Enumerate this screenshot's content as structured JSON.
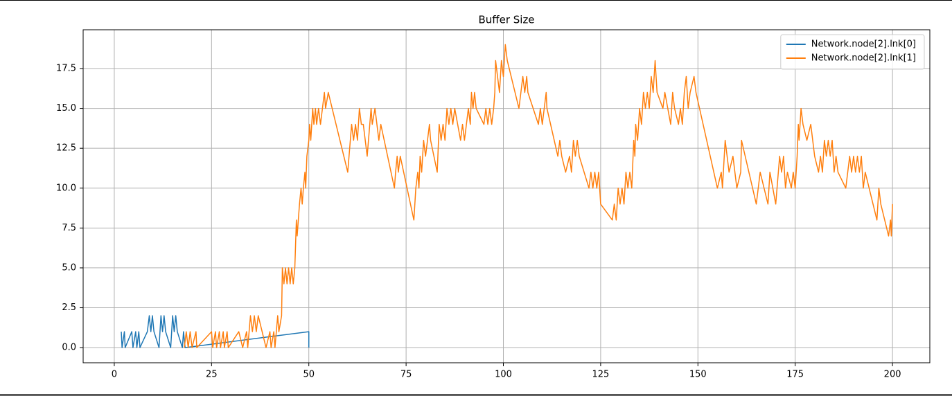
{
  "chart_data": {
    "type": "line",
    "title": "Buffer Size",
    "series": [
      {
        "name": "Network.node[2].lnk[0]",
        "color": "#1f77b4",
        "x": [
          1.8,
          2.0,
          2.6,
          2.8,
          4.5,
          4.8,
          5.5,
          5.8,
          6.3,
          6.6,
          8.5,
          9.0,
          9.4,
          9.8,
          10.2,
          11.5,
          12.0,
          12.4,
          12.8,
          13.2,
          14.5,
          15.0,
          15.4,
          15.8,
          16.2,
          17.5,
          17.8,
          18.2,
          50,
          50
        ],
        "values": [
          1,
          0,
          1,
          0,
          1,
          0,
          1,
          0,
          1,
          0,
          1,
          2,
          1,
          2,
          1,
          0,
          2,
          1,
          2,
          1,
          0,
          2,
          1,
          2,
          1,
          0,
          1,
          0,
          1,
          0
        ]
      },
      {
        "name": "Network.node[2].lnk[1]",
        "color": "#ff7f0e",
        "x": [
          18.0,
          18.5,
          19.0,
          19.5,
          20.0,
          21.0,
          21.2,
          25,
          25.3,
          26,
          26.3,
          27,
          27.3,
          28,
          28.3,
          29,
          29.3,
          32,
          33,
          34,
          34.3,
          35,
          35.5,
          36,
          36.5,
          37,
          38,
          39,
          40,
          40.3,
          41,
          41.3,
          42,
          42.3,
          43,
          43.2,
          43.6,
          44,
          44.4,
          44.8,
          45.2,
          45.6,
          46,
          46.4,
          46.8,
          47,
          47.3,
          47.6,
          48,
          48.3,
          48.6,
          49,
          49.2,
          49.5,
          50,
          50.2,
          50.5,
          51,
          51.3,
          51.7,
          52,
          52.5,
          53,
          53.5,
          54,
          54.3,
          55,
          58,
          60,
          61,
          61.5,
          62,
          62.5,
          63,
          63.5,
          64,
          65,
          66,
          66.3,
          67,
          67.5,
          68,
          68.5,
          72,
          72.3,
          72.7,
          73,
          73.5,
          77,
          77.5,
          78,
          78.3,
          78.6,
          79,
          79.5,
          80,
          81,
          81.3,
          83,
          83.5,
          84,
          84.5,
          85,
          85.5,
          86,
          86.5,
          87,
          87.5,
          89,
          89.5,
          90,
          90.5,
          91,
          91.5,
          91.8,
          92.2,
          92.6,
          93,
          95,
          95.5,
          96,
          96.5,
          97,
          97.5,
          97.8,
          98,
          98.5,
          99,
          99.5,
          100,
          100.5,
          101,
          104,
          104.5,
          105,
          105.5,
          106,
          106.3,
          109,
          109.5,
          110,
          111,
          111.2,
          114,
          114.5,
          115,
          116,
          117,
          117.5,
          118,
          118.5,
          119,
          119.5,
          122,
          122.5,
          123,
          123.5,
          124,
          124.5,
          125,
          128,
          128.5,
          129,
          129.5,
          130,
          130.5,
          131,
          131.5,
          132,
          132.5,
          133,
          133.5,
          133.8,
          134,
          134.5,
          135,
          135.5,
          136,
          136.5,
          137,
          137.5,
          138,
          138.5,
          139,
          139.5,
          141,
          141.5,
          143,
          143.5,
          144,
          145,
          145.5,
          146,
          146.5,
          147,
          147.5,
          148,
          149,
          149.5,
          155,
          156,
          156.3,
          157,
          157.5,
          158,
          159,
          160,
          161,
          161.2,
          165,
          166,
          168,
          168.5,
          170,
          171,
          171.5,
          172,
          172.5,
          173,
          174,
          174.5,
          175,
          175.5,
          175.8,
          176,
          176.5,
          177,
          178,
          179,
          180,
          181,
          181.5,
          182,
          182.5,
          183,
          183.5,
          184,
          184.5,
          185,
          185.5,
          186,
          188,
          189,
          189.5,
          190,
          190.5,
          191,
          191.5,
          192,
          192.5,
          193,
          195,
          196,
          196.5,
          197,
          199,
          199.5,
          199.7,
          200
        ],
        "values": [
          0,
          1,
          0,
          1,
          0,
          1,
          0,
          1,
          0,
          1,
          0,
          1,
          0,
          1,
          0,
          1,
          0,
          1,
          0,
          1,
          0,
          2,
          1,
          2,
          1,
          2,
          1,
          0,
          1,
          0,
          1,
          0,
          2,
          1,
          2,
          5,
          4,
          5,
          4,
          5,
          4,
          5,
          4,
          5,
          8,
          7,
          8,
          9,
          10,
          9,
          10,
          11,
          10,
          12,
          13,
          14,
          13,
          15,
          14,
          15,
          14,
          15,
          14,
          15,
          16,
          15,
          16,
          13,
          11,
          14,
          13,
          14,
          13,
          15,
          14,
          14,
          12,
          15,
          14,
          15,
          14,
          13,
          14,
          10,
          11,
          12,
          11,
          12,
          8,
          10,
          11,
          10,
          12,
          11,
          13,
          12,
          14,
          13,
          11,
          14,
          13,
          14,
          13,
          15,
          14,
          15,
          14,
          15,
          13,
          14,
          13,
          14,
          15,
          14,
          16,
          15,
          16,
          15,
          14,
          15,
          14,
          15,
          14,
          15,
          16,
          18,
          17,
          16,
          18,
          17,
          19,
          18,
          15,
          16,
          17,
          16,
          17,
          16,
          14,
          15,
          14,
          16,
          15,
          12,
          13,
          12,
          11,
          12,
          11,
          13,
          12,
          13,
          12,
          10,
          11,
          10,
          11,
          10,
          11,
          9,
          8,
          9,
          8,
          10,
          9,
          10,
          9,
          11,
          10,
          11,
          10,
          13,
          12,
          14,
          13,
          15,
          14,
          16,
          15,
          16,
          15,
          17,
          16,
          18,
          16,
          15,
          16,
          14,
          16,
          15,
          14,
          15,
          14,
          16,
          17,
          15,
          16,
          17,
          16,
          10,
          11,
          10,
          13,
          12,
          11,
          12,
          10,
          11,
          13,
          9,
          11,
          9,
          11,
          9,
          12,
          11,
          12,
          10,
          11,
          10,
          11,
          10,
          12,
          14,
          13,
          15,
          14,
          13,
          14,
          12,
          11,
          12,
          11,
          13,
          12,
          13,
          12,
          13,
          11,
          12,
          11,
          10,
          12,
          11,
          12,
          11,
          12,
          11,
          12,
          10,
          11,
          9,
          8,
          10,
          9,
          7,
          8,
          7,
          9
        ]
      }
    ],
    "xlim": [
      -8,
      209.6
    ],
    "ylim": [
      -0.95,
      19.93
    ],
    "xticks": [
      0,
      25,
      50,
      75,
      100,
      125,
      150,
      175,
      200
    ],
    "yticks": [
      {
        "value": 0,
        "label": "0.0"
      },
      2.5,
      {
        "value": 5,
        "label": "5.0"
      },
      7.5,
      {
        "value": 10,
        "label": "10.0"
      },
      12.5,
      {
        "value": 15,
        "label": "15.0"
      },
      17.5
    ],
    "grid": true,
    "legend": "upper right"
  }
}
